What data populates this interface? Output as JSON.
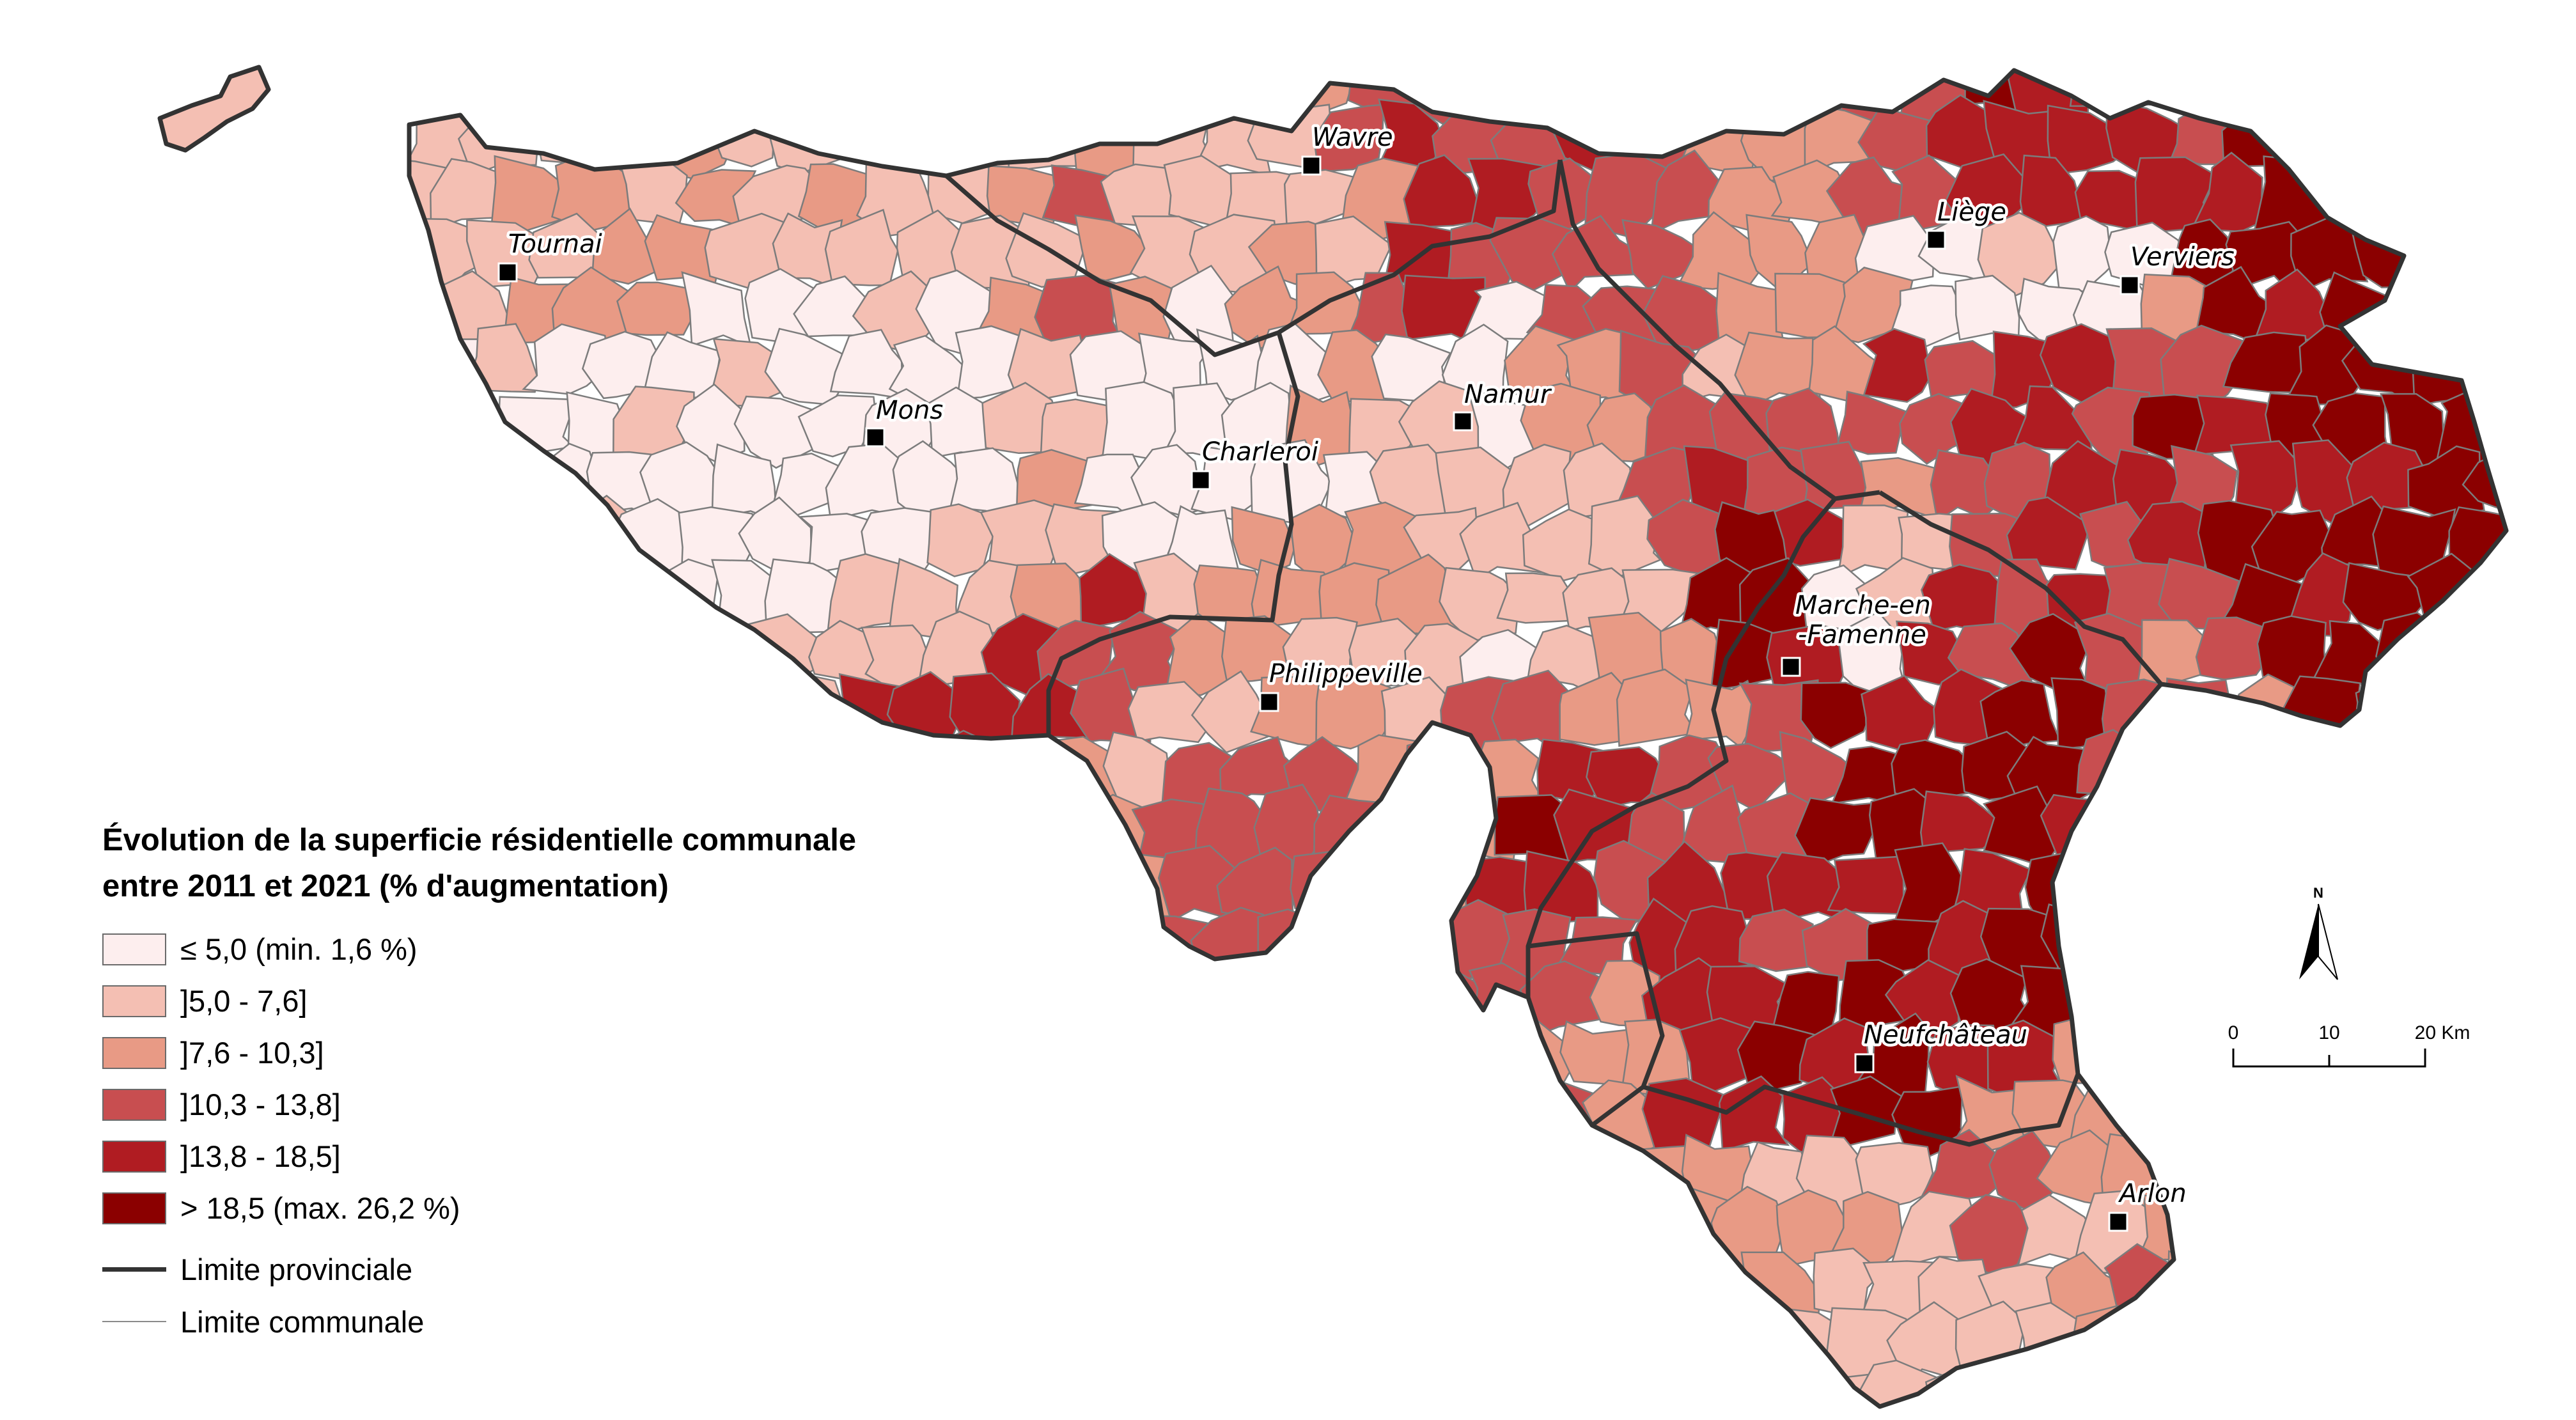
{
  "legend": {
    "title_line1": "Évolution de la superficie résidentielle communale",
    "title_line2": "entre 2011 et 2021 (% d'augmentation)",
    "classes": [
      {
        "label": "≤ 5,0 (min. 1,6 %)",
        "color": "#fdeeee"
      },
      {
        "label": "]5,0 - 7,6]",
        "color": "#f4bfb3"
      },
      {
        "label": "]7,6 - 10,3]",
        "color": "#e89a85"
      },
      {
        "label": "]10,3 - 13,8]",
        "color": "#c84e50"
      },
      {
        "label": "]13,8 - 18,5]",
        "color": "#b01c22"
      },
      {
        "label": "> 18,5  (max. 26,2 %)",
        "color": "#8b0000"
      }
    ],
    "lines": [
      {
        "label": "Limite provinciale",
        "color": "#333333"
      },
      {
        "label": "Limite communale",
        "color": "#8a8a8a"
      }
    ]
  },
  "cities": {
    "wavre": "Wavre",
    "tournai": "Tournai",
    "liege": "Liège",
    "verviers": "Verviers",
    "mons": "Mons",
    "namur": "Namur",
    "charleroi": "Charleroi",
    "marche_line1": "Marche-en",
    "marche_line2": "-Famenne",
    "philippeville": "Philippeville",
    "neufchateau": "Neufchâteau",
    "arlon": "Arlon"
  },
  "north_arrow": {
    "letter": "N",
    "icon": "north-arrow-icon"
  },
  "scale_bar": {
    "tick_0": "0",
    "tick_10": "10",
    "tick_20": "20 Km"
  }
}
